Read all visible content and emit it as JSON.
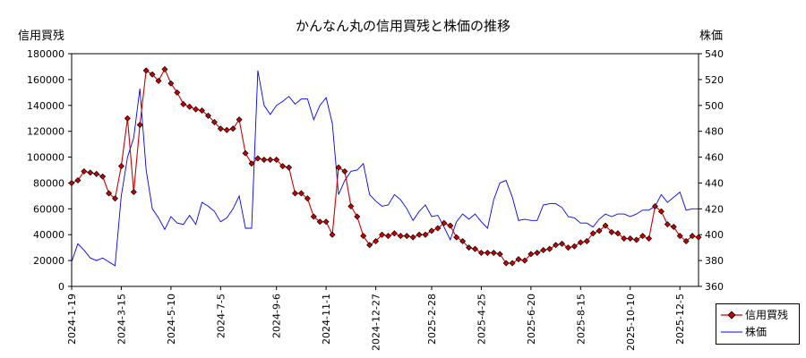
{
  "title": "かんなん丸の信用買残と株価の推移",
  "ylabel_left": "信用買残",
  "ylabel_right": "株価",
  "legend": [
    {
      "label": "信用買残",
      "color": "#cc0000"
    },
    {
      "label": "株価",
      "color": "#0000ff"
    }
  ],
  "chart_data": {
    "type": "line",
    "x_tick_labels": [
      "2024-1-19",
      "2024-3-15",
      "2024-5-10",
      "2024-7-5",
      "2024-9-6",
      "2024-11-1",
      "2024-12-27",
      "2025-2-28",
      "2025-4-25",
      "2025-6-20",
      "2025-8-15",
      "2025-10-10",
      "2025-12-5"
    ],
    "y_left_ticks": [
      "0",
      "20000",
      "40000",
      "60000",
      "80000",
      "100000",
      "120000",
      "140000",
      "160000",
      "180000"
    ],
    "y_right_ticks": [
      "360",
      "380",
      "400",
      "420",
      "440",
      "460",
      "480",
      "500",
      "520",
      "540"
    ],
    "ylim_left": [
      0,
      180000
    ],
    "ylim_right": [
      360,
      540
    ],
    "grid": false,
    "legend_position": "bottom-right, outside plot",
    "series": [
      {
        "name": "信用買残",
        "axis": "left",
        "marker": "diamond",
        "color": "#cc0000",
        "x": [
          "2024-01-19",
          "2024-01-26",
          "2024-02-02",
          "2024-02-09",
          "2024-02-16",
          "2024-02-23",
          "2024-03-01",
          "2024-03-08",
          "2024-03-15",
          "2024-03-22",
          "2024-03-29",
          "2024-04-05",
          "2024-04-12",
          "2024-04-19",
          "2024-04-26",
          "2024-05-03",
          "2024-05-10",
          "2024-05-17",
          "2024-05-24",
          "2024-05-31",
          "2024-06-07",
          "2024-06-14",
          "2024-06-21",
          "2024-06-28",
          "2024-07-05",
          "2024-07-12",
          "2024-07-19",
          "2024-07-26",
          "2024-08-02",
          "2024-08-09",
          "2024-08-16",
          "2024-08-23",
          "2024-08-30",
          "2024-09-06",
          "2024-09-13",
          "2024-09-20",
          "2024-09-27",
          "2024-10-04",
          "2024-10-11",
          "2024-10-18",
          "2024-10-25",
          "2024-11-01",
          "2024-11-08",
          "2024-11-15",
          "2024-11-22",
          "2024-11-29",
          "2024-12-06",
          "2024-12-13",
          "2024-12-20",
          "2024-12-27",
          "2025-01-03",
          "2025-01-10",
          "2025-01-17",
          "2025-01-24",
          "2025-01-31",
          "2025-02-07",
          "2025-02-14",
          "2025-02-21",
          "2025-02-28",
          "2025-03-07",
          "2025-03-14",
          "2025-03-21",
          "2025-03-28",
          "2025-04-04",
          "2025-04-11",
          "2025-04-18",
          "2025-04-25",
          "2025-05-02",
          "2025-05-09",
          "2025-05-16",
          "2025-05-23",
          "2025-05-30",
          "2025-06-06",
          "2025-06-13",
          "2025-06-20",
          "2025-06-27",
          "2025-07-04",
          "2025-07-11",
          "2025-07-18",
          "2025-07-25",
          "2025-08-01",
          "2025-08-08",
          "2025-08-15",
          "2025-08-22",
          "2025-08-29",
          "2025-09-05",
          "2025-09-12",
          "2025-09-19",
          "2025-09-26",
          "2025-10-03",
          "2025-10-10",
          "2025-10-17",
          "2025-10-24",
          "2025-10-31",
          "2025-11-07",
          "2025-11-14",
          "2025-11-21",
          "2025-11-28",
          "2025-12-05",
          "2025-12-12",
          "2025-12-19",
          "2025-12-26"
        ],
        "values": [
          80000,
          82000,
          89000,
          88000,
          87000,
          85000,
          72000,
          68000,
          93000,
          130000,
          73000,
          125000,
          167000,
          164000,
          159000,
          168000,
          157000,
          150000,
          141000,
          139000,
          137000,
          136000,
          132000,
          127000,
          122000,
          121000,
          122000,
          129000,
          103000,
          95000,
          99000,
          98000,
          98000,
          98000,
          93000,
          92000,
          72000,
          72000,
          68000,
          54000,
          50000,
          50000,
          40000,
          92000,
          89000,
          62000,
          54000,
          39000,
          32000,
          35000,
          40000,
          39000,
          41000,
          39000,
          39000,
          38000,
          40000,
          40000,
          43000,
          45000,
          49000,
          47000,
          38000,
          35000,
          30000,
          29000,
          26000,
          26000,
          26000,
          25000,
          18000,
          18000,
          21000,
          20000,
          25000,
          26000,
          28000,
          29000,
          32000,
          33000,
          30000,
          31000,
          34000,
          35000,
          41000,
          43000,
          47000,
          42000,
          41000,
          37000,
          37000,
          36000,
          39000,
          37000,
          62000,
          58000,
          48000,
          46000,
          39000,
          35000,
          39000,
          38000
        ]
      },
      {
        "name": "株価",
        "axis": "right",
        "color": "#0000ff",
        "x": [
          "2024-01-19",
          "2024-01-26",
          "2024-02-02",
          "2024-02-09",
          "2024-02-16",
          "2024-02-23",
          "2024-03-01",
          "2024-03-08",
          "2024-03-15",
          "2024-03-22",
          "2024-03-29",
          "2024-04-05",
          "2024-04-12",
          "2024-04-19",
          "2024-04-26",
          "2024-05-03",
          "2024-05-10",
          "2024-05-17",
          "2024-05-24",
          "2024-05-31",
          "2024-06-07",
          "2024-06-14",
          "2024-06-21",
          "2024-06-28",
          "2024-07-05",
          "2024-07-12",
          "2024-07-19",
          "2024-07-26",
          "2024-08-02",
          "2024-08-09",
          "2024-08-16",
          "2024-08-23",
          "2024-08-30",
          "2024-09-06",
          "2024-09-13",
          "2024-09-20",
          "2024-09-27",
          "2024-10-04",
          "2024-10-11",
          "2024-10-18",
          "2024-10-25",
          "2024-11-01",
          "2024-11-08",
          "2024-11-15",
          "2024-11-22",
          "2024-11-29",
          "2024-12-06",
          "2024-12-13",
          "2024-12-20",
          "2024-12-27",
          "2025-01-03",
          "2025-01-10",
          "2025-01-17",
          "2025-01-24",
          "2025-01-31",
          "2025-02-07",
          "2025-02-14",
          "2025-02-21",
          "2025-02-28",
          "2025-03-07",
          "2025-03-14",
          "2025-03-21",
          "2025-03-28",
          "2025-04-04",
          "2025-04-11",
          "2025-04-18",
          "2025-04-25",
          "2025-05-02",
          "2025-05-09",
          "2025-05-16",
          "2025-05-23",
          "2025-05-30",
          "2025-06-06",
          "2025-06-13",
          "2025-06-20",
          "2025-06-27",
          "2025-07-04",
          "2025-07-11",
          "2025-07-18",
          "2025-07-25",
          "2025-08-01",
          "2025-08-08",
          "2025-08-15",
          "2025-08-22",
          "2025-08-29",
          "2025-09-05",
          "2025-09-12",
          "2025-09-19",
          "2025-09-26",
          "2025-10-03",
          "2025-10-10",
          "2025-10-17",
          "2025-10-24",
          "2025-10-31",
          "2025-11-07",
          "2025-11-14",
          "2025-11-21",
          "2025-11-28",
          "2025-12-05",
          "2025-12-12",
          "2025-12-19",
          "2025-12-26"
        ],
        "values": [
          379,
          393,
          388,
          382,
          380,
          382,
          379,
          376,
          430,
          460,
          475,
          513,
          450,
          420,
          413,
          404,
          414,
          409,
          408,
          415,
          408,
          425,
          422,
          418,
          410,
          413,
          420,
          430,
          405,
          405,
          527,
          500,
          493,
          500,
          503,
          507,
          501,
          505,
          505,
          489,
          500,
          506,
          486,
          431,
          442,
          449,
          450,
          455,
          431,
          426,
          422,
          423,
          431,
          427,
          420,
          411,
          418,
          423,
          414,
          415,
          406,
          396,
          410,
          416,
          412,
          416,
          410,
          405,
          427,
          440,
          442,
          429,
          411,
          412,
          411,
          411,
          423,
          424,
          424,
          421,
          414,
          413,
          409,
          409,
          406,
          412,
          416,
          414,
          416,
          416,
          414,
          416,
          419,
          419,
          422,
          431,
          425,
          429,
          433,
          419,
          420,
          420
        ]
      }
    ]
  }
}
